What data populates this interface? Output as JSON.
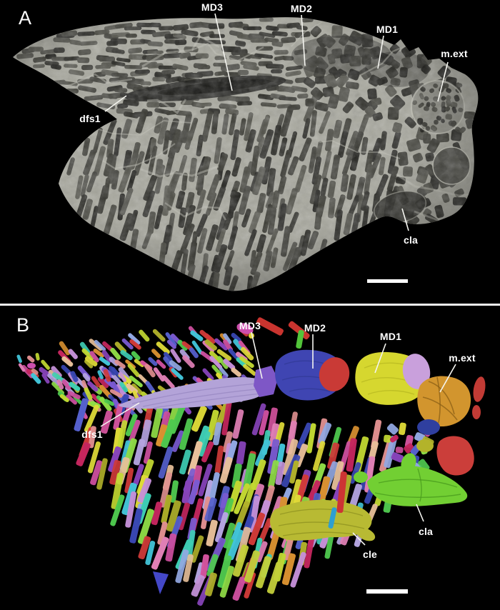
{
  "figure": {
    "panel_a": {
      "letter": "A",
      "labels": {
        "md3": "MD3",
        "md2": "MD2",
        "md1": "MD1",
        "m_ext": "m.ext",
        "dfs1": "dfs1",
        "cla": "cla"
      }
    },
    "panel_b": {
      "letter": "B",
      "labels": {
        "md3": "MD3",
        "md2": "MD2",
        "md1": "MD1",
        "m_ext": "m.ext",
        "dfs1": "dfs1",
        "cla": "cla",
        "cle": "cle"
      }
    }
  },
  "colors": {
    "background": "#000000",
    "text": "#ffffff",
    "divider": "#f2f2f2",
    "leader_line": "#f5f5f0",
    "scale_bar": "#ffffff",
    "fossil": {
      "base": "#a8a89e",
      "dark_scales": [
        "#2e2e2a",
        "#383832",
        "#42423c",
        "#4c4c45",
        "#262622",
        "#55554e"
      ],
      "groove": "#1d1d1b",
      "vein": "#c6c6ba"
    },
    "structures": {
      "dfs1": "#b3a3d8",
      "md3": "#7e57c6",
      "md2": "#3f45b2",
      "md1": "#d6d72f",
      "m_ext": "#d2952e",
      "cla": "#72cf33",
      "cle": "#b8ba33"
    },
    "model_palette": [
      "#cf3a38",
      "#c4265e",
      "#cc4f9e",
      "#e07fb5",
      "#e09090",
      "#e8c09a",
      "#8844bb",
      "#7a5ad0",
      "#5560cc",
      "#3947b2",
      "#42c4d8",
      "#3ecdb4",
      "#4fc94f",
      "#8fdc46",
      "#c2d832",
      "#e0dc38",
      "#b0b02a",
      "#d89030",
      "#b4a4e0",
      "#92a8e2",
      "#c490d8",
      "#d4549e"
    ]
  }
}
